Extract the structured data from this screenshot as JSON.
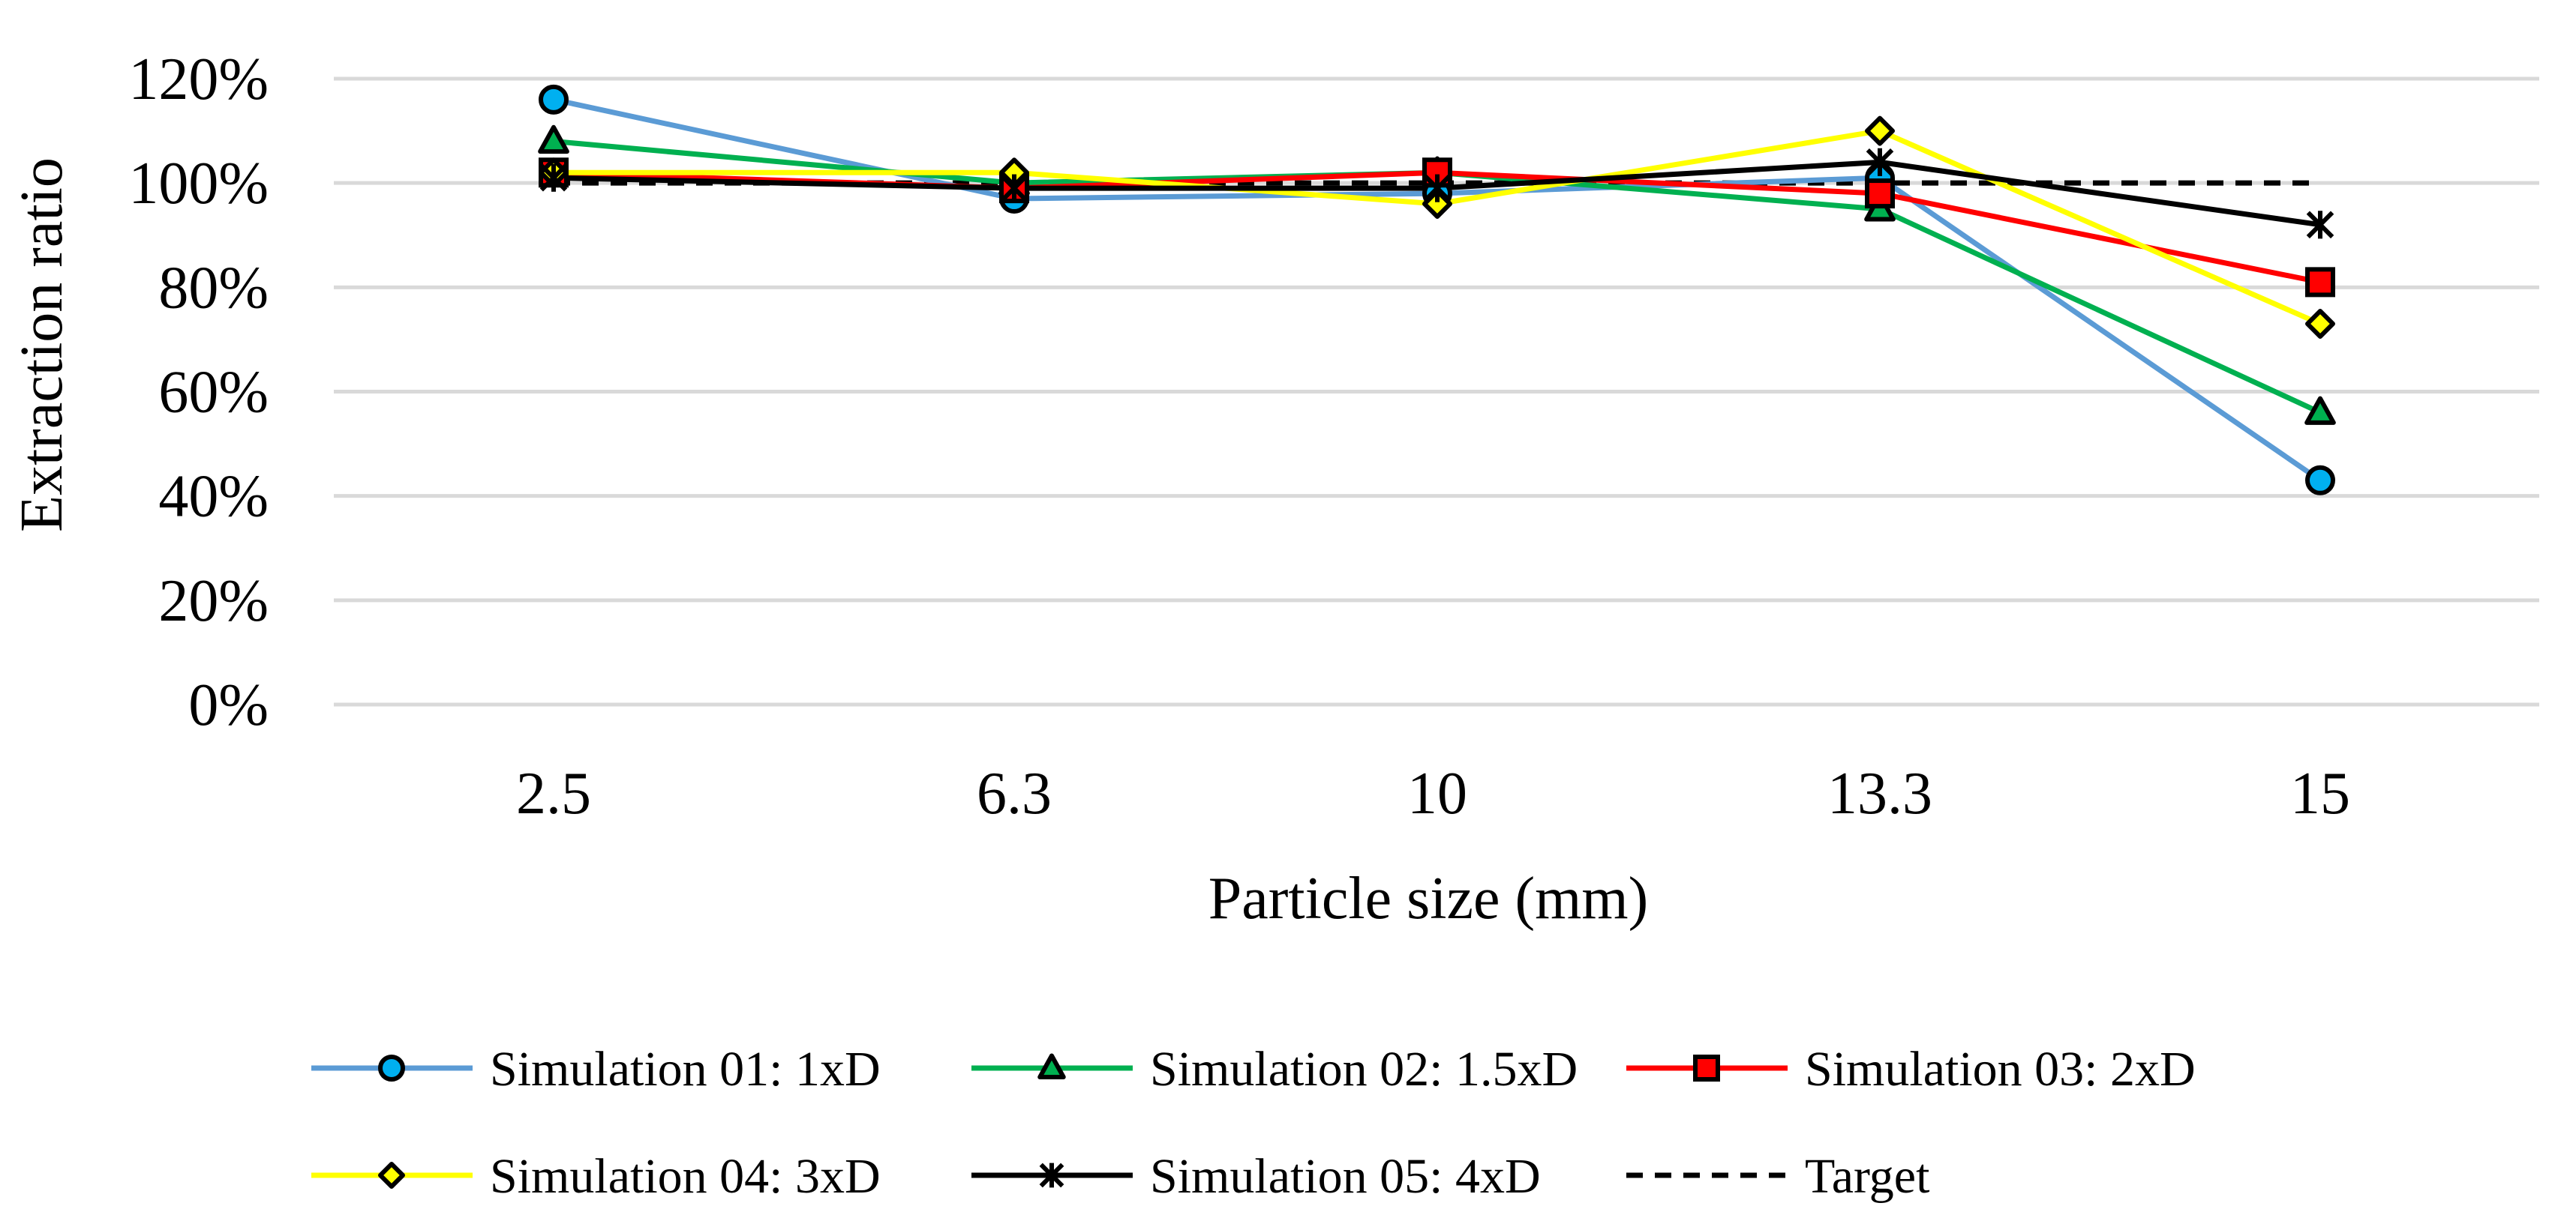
{
  "chart_data": {
    "type": "line",
    "title": "",
    "xlabel": "Particle size (mm)",
    "ylabel": "Extraction ratio",
    "categories": [
      "2.5",
      "6.3",
      "10",
      "13.3",
      "15"
    ],
    "y_unit": "percent",
    "ylim": [
      0,
      120
    ],
    "y_ticks": [
      "0%",
      "20%",
      "40%",
      "60%",
      "80%",
      "100%",
      "120%"
    ],
    "grid": true,
    "legend_position": "bottom",
    "series": [
      {
        "name": "Simulation 01: 1xD",
        "values": [
          116,
          97,
          98,
          101,
          43
        ],
        "color": "#5B9BD5",
        "marker": "circle",
        "marker_fill": "#00B0F0",
        "dash": "solid"
      },
      {
        "name": "Simulation 02: 1.5xD",
        "values": [
          108,
          100,
          102,
          95,
          56
        ],
        "color": "#00B050",
        "marker": "triangle",
        "marker_fill": "#00B050",
        "dash": "solid"
      },
      {
        "name": "Simulation 03: 2xD",
        "values": [
          102,
          99,
          102,
          98,
          81
        ],
        "color": "#FF0000",
        "marker": "square",
        "marker_fill": "#FF0000",
        "dash": "solid"
      },
      {
        "name": "Simulation 04: 3xD",
        "values": [
          102,
          102,
          96,
          110,
          73
        ],
        "color": "#FFFF00",
        "marker": "diamond",
        "marker_fill": "#FFFF00",
        "dash": "solid"
      },
      {
        "name": "Simulation 05: 4xD",
        "values": [
          101,
          99,
          99,
          104,
          92
        ],
        "color": "#000000",
        "marker": "star",
        "marker_fill": "#000000",
        "dash": "solid"
      },
      {
        "name": "Target",
        "values": [
          100,
          100,
          100,
          100,
          100
        ],
        "color": "#000000",
        "marker": "none",
        "marker_fill": "none",
        "dash": "dashed"
      }
    ]
  }
}
